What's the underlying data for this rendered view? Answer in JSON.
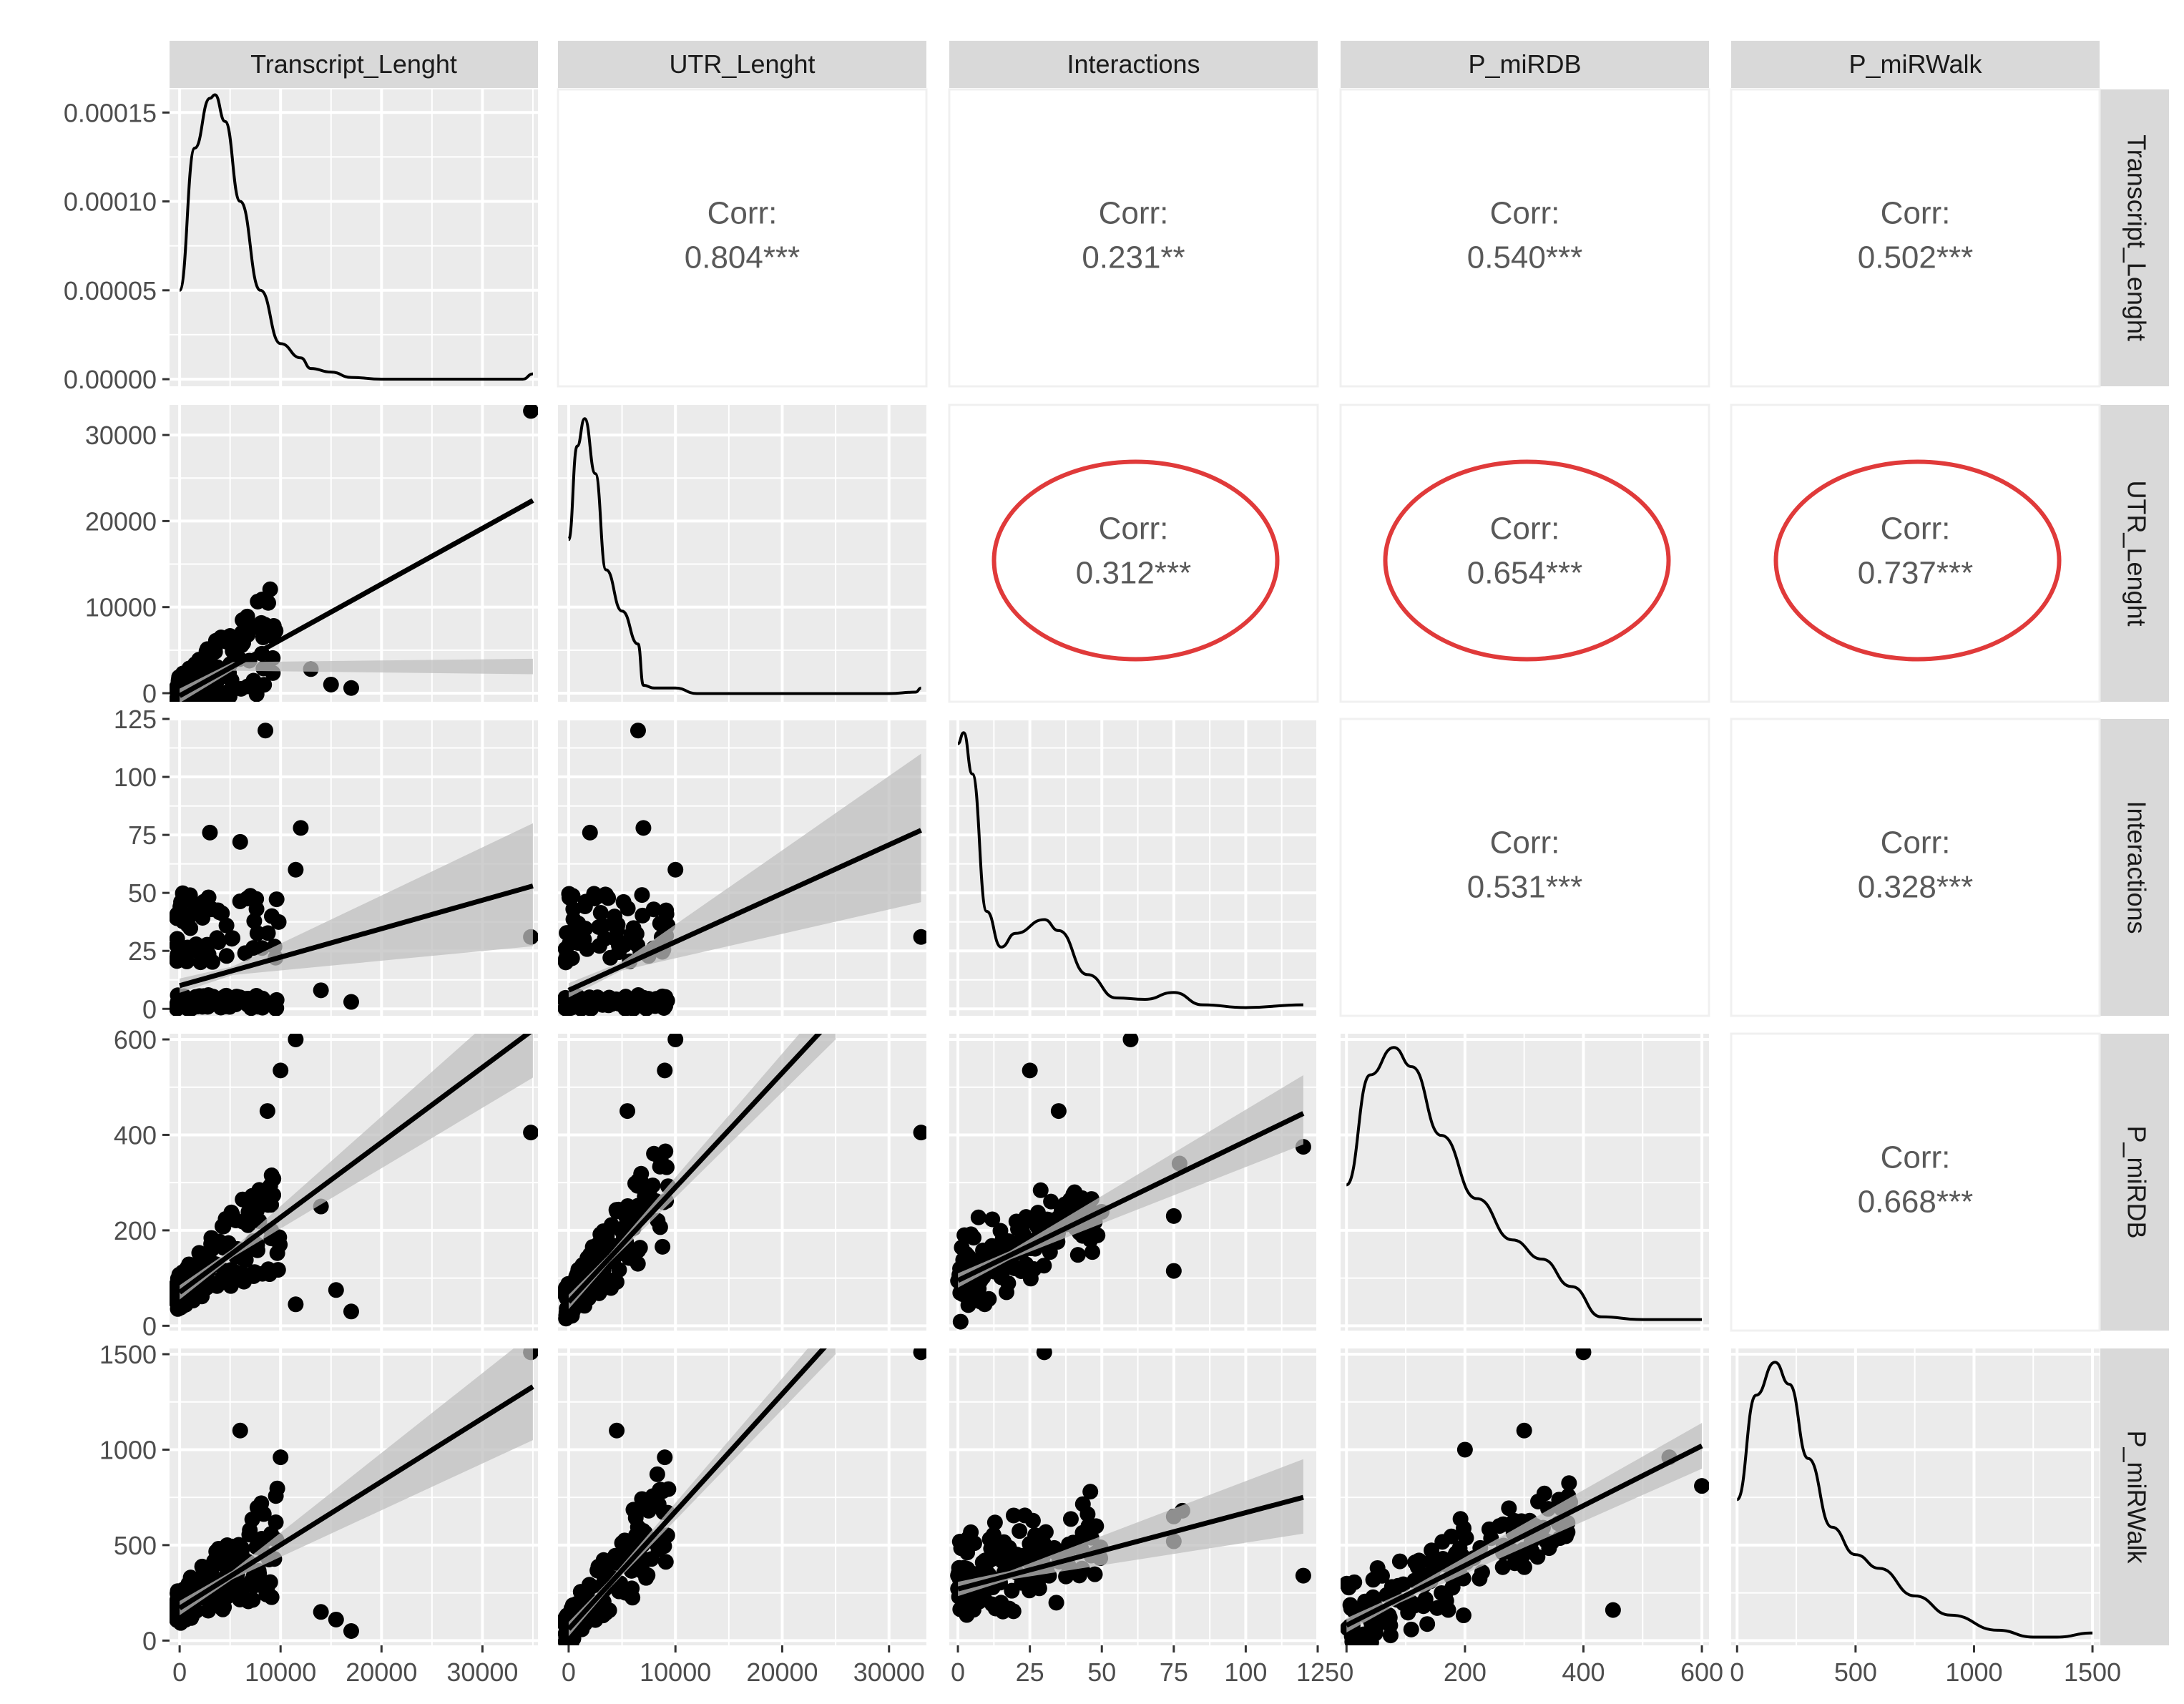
{
  "chart_data": {
    "type": "scatter",
    "title": "",
    "variables": [
      "Transcript_Lenght",
      "UTR_Lenght",
      "Interactions",
      "P_miRDB",
      "P_miRWalk"
    ],
    "layout": {
      "rows": 5,
      "cols": 5,
      "strip_top": true,
      "strip_right": true,
      "grid": true,
      "legend": "none"
    },
    "axes": {
      "Transcript_Lenght": {
        "range": [
          -1000,
          35500
        ],
        "ticks": [
          0,
          10000,
          20000,
          30000
        ],
        "tick_labels": [
          "0",
          "10000",
          "20000",
          "30000"
        ]
      },
      "UTR_Lenght": {
        "range": [
          -1000,
          33500
        ],
        "ticks": [
          0,
          10000,
          20000,
          30000
        ],
        "tick_labels": [
          "0",
          "10000",
          "20000",
          "30000"
        ]
      },
      "Interactions": {
        "range": [
          -3,
          125
        ],
        "ticks": [
          0,
          25,
          50,
          75,
          100,
          125
        ],
        "tick_labels": [
          "0",
          "25",
          "50",
          "75",
          "100",
          "125"
        ]
      },
      "P_miRDB": {
        "range": [
          -10,
          612
        ],
        "ticks": [
          0,
          200,
          400,
          600
        ],
        "tick_labels": [
          "0",
          "200",
          "400",
          "600"
        ]
      },
      "P_miRWalk": {
        "range": [
          -25,
          1530
        ],
        "ticks": [
          0,
          500,
          1000,
          1500
        ],
        "tick_labels": [
          "0",
          "500",
          "1000",
          "1500"
        ]
      }
    },
    "density_axis_row1": {
      "range": [
        -4e-06,
        0.000163
      ],
      "ticks": [
        0,
        5e-05,
        0.0001,
        0.00015
      ],
      "tick_labels": [
        "0.00000",
        "0.00005",
        "0.00010",
        "0.00015"
      ]
    },
    "correlations": [
      {
        "row": 0,
        "col": 1,
        "label": "Corr:",
        "value": "0.804***",
        "highlighted": false
      },
      {
        "row": 0,
        "col": 2,
        "label": "Corr:",
        "value": "0.231**",
        "highlighted": false
      },
      {
        "row": 0,
        "col": 3,
        "label": "Corr:",
        "value": "0.540***",
        "highlighted": false
      },
      {
        "row": 0,
        "col": 4,
        "label": "Corr:",
        "value": "0.502***",
        "highlighted": false
      },
      {
        "row": 1,
        "col": 2,
        "label": "Corr:",
        "value": "0.312***",
        "highlighted": true
      },
      {
        "row": 1,
        "col": 3,
        "label": "Corr:",
        "value": "0.654***",
        "highlighted": true
      },
      {
        "row": 1,
        "col": 4,
        "label": "Corr:",
        "value": "0.737***",
        "highlighted": true
      },
      {
        "row": 2,
        "col": 3,
        "label": "Corr:",
        "value": "0.531***",
        "highlighted": false
      },
      {
        "row": 2,
        "col": 4,
        "label": "Corr:",
        "value": "0.328***",
        "highlighted": false
      },
      {
        "row": 3,
        "col": 4,
        "label": "Corr:",
        "value": "0.668***",
        "highlighted": false
      }
    ],
    "densities": [
      {
        "var": "Transcript_Lenght",
        "x": [
          0,
          1500,
          3000,
          3500,
          4500,
          6000,
          8000,
          10000,
          12000,
          13000,
          15000,
          17000,
          20000,
          25000,
          30000,
          34000,
          35000
        ],
        "y": [
          5e-05,
          0.00013,
          0.000158,
          0.00016,
          0.000145,
          0.0001,
          5e-05,
          2e-05,
          1.2e-05,
          6e-06,
          4e-06,
          1e-06,
          0,
          0,
          0,
          0,
          3e-06
        ]
      },
      {
        "var": "UTR_Lenght",
        "x": [
          0,
          800,
          1500,
          2500,
          3500,
          5000,
          6500,
          7000,
          8000,
          10000,
          12000,
          20000,
          30000,
          32500,
          33000
        ],
        "y": [
          0.56,
          0.9,
          1.0,
          0.8,
          0.45,
          0.3,
          0.18,
          0.03,
          0.02,
          0.02,
          0.0,
          0.0,
          0.0,
          0.005,
          0.02
        ]
      },
      {
        "var": "Interactions",
        "x": [
          0,
          2,
          5,
          10,
          15,
          20,
          30,
          35,
          45,
          55,
          65,
          75,
          85,
          100,
          120
        ],
        "y": [
          0.96,
          1.0,
          0.85,
          0.35,
          0.22,
          0.27,
          0.32,
          0.28,
          0.12,
          0.035,
          0.03,
          0.055,
          0.01,
          0.0,
          0.01
        ]
      },
      {
        "var": "P_miRDB",
        "x": [
          0,
          40,
          80,
          110,
          160,
          220,
          280,
          330,
          380,
          430,
          500,
          600
        ],
        "y": [
          0.5,
          0.9,
          1.0,
          0.93,
          0.68,
          0.45,
          0.3,
          0.23,
          0.13,
          0.02,
          0.01,
          0.01
        ]
      },
      {
        "var": "P_miRWalk",
        "x": [
          0,
          80,
          160,
          220,
          300,
          400,
          500,
          600,
          750,
          900,
          1100,
          1250,
          1350,
          1500
        ],
        "y": [
          0.5,
          0.88,
          1.0,
          0.92,
          0.65,
          0.4,
          0.3,
          0.25,
          0.15,
          0.08,
          0.025,
          0.0,
          0.0,
          0.015
        ]
      }
    ],
    "regression": [
      {
        "row": 1,
        "col": 0,
        "x": [
          0,
          35000
        ],
        "y": [
          -300,
          22400
        ],
        "ci_end": [
          2200,
          4000
        ]
      },
      {
        "row": 2,
        "col": 0,
        "x": [
          0,
          35000
        ],
        "y": [
          10,
          53
        ],
        "ci_end": [
          27,
          80
        ]
      },
      {
        "row": 2,
        "col": 1,
        "x": [
          0,
          33000
        ],
        "y": [
          8,
          77
        ],
        "ci_end": [
          46,
          110
        ]
      },
      {
        "row": 3,
        "col": 0,
        "x": [
          0,
          35000
        ],
        "y": [
          70,
          620
        ],
        "ci_end": [
          520,
          720
        ]
      },
      {
        "row": 3,
        "col": 1,
        "x": [
          0,
          25000
        ],
        "y": [
          50,
          650
        ],
        "ci_end": [
          600,
          700
        ]
      },
      {
        "row": 3,
        "col": 2,
        "x": [
          0,
          120
        ],
        "y": [
          95,
          445
        ],
        "ci_end": [
          380,
          525
        ]
      },
      {
        "row": 4,
        "col": 0,
        "x": [
          0,
          35000
        ],
        "y": [
          170,
          1330
        ],
        "ci_end": [
          1050,
          1610
        ]
      },
      {
        "row": 4,
        "col": 1,
        "x": [
          0,
          25000
        ],
        "y": [
          60,
          1600
        ],
        "ci_end": [
          1500,
          1700
        ]
      },
      {
        "row": 4,
        "col": 2,
        "x": [
          0,
          120
        ],
        "y": [
          270,
          750
        ],
        "ci_end": [
          560,
          950
        ]
      },
      {
        "row": 4,
        "col": 3,
        "x": [
          0,
          600
        ],
        "y": [
          80,
          1020
        ],
        "ci_end": [
          900,
          1140
        ]
      }
    ],
    "annotations": [
      {
        "type": "ellipse",
        "color": "#e03a3a",
        "around": "UTR_Lenght x Interactions"
      },
      {
        "type": "ellipse",
        "color": "#e03a3a",
        "around": "UTR_Lenght x P_miRDB"
      },
      {
        "type": "ellipse",
        "color": "#e03a3a",
        "around": "UTR_Lenght x P_miRWalk"
      }
    ]
  },
  "colors": {
    "panel_bg": "#ebebeb",
    "grid_major": "#ffffff",
    "strip_bg": "#d9d9d9",
    "strip_text": "#1a1a1a",
    "tick_text": "#4d4d4d",
    "corr_text": "#595959",
    "point": "#000000",
    "ribbon": "#bfbfbf",
    "highlight_circle": "#e03a3a"
  }
}
